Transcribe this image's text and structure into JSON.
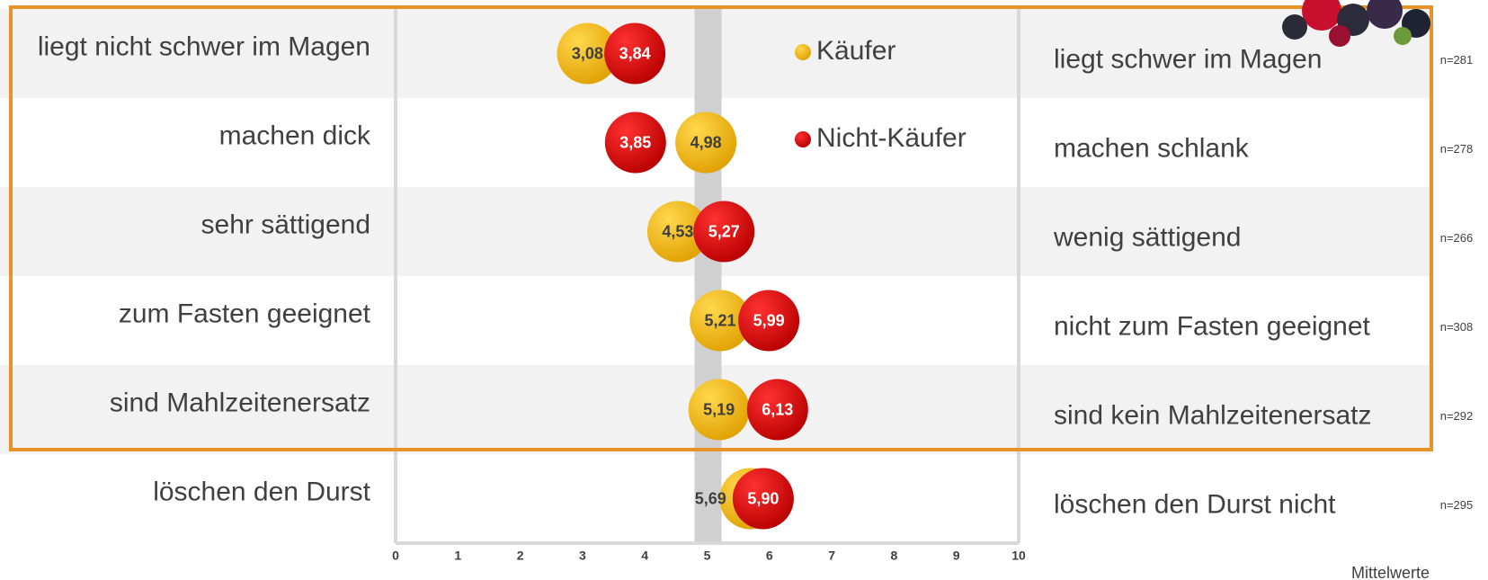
{
  "chart_data": {
    "type": "dot",
    "categories": [
      "liegt nicht schwer im Magen",
      "machen dick",
      "sehr sättigend",
      "zum Fasten geeignet",
      "sind Mahlzeitenersatz",
      "löschen den Durst"
    ],
    "right_labels": [
      "liegt schwer im Magen",
      "machen schlank",
      "wenig sättigend",
      "nicht zum Fasten geeignet",
      "sind kein Mahlzeitenersatz",
      "löschen den Durst nicht"
    ],
    "n_labels": [
      "n=281",
      "n=278",
      "n=266",
      "n=308",
      "n=292",
      "n=295"
    ],
    "series": [
      {
        "name": "Käufer",
        "color": "#f5b800",
        "label_color": "#404040",
        "values": [
          3.08,
          4.98,
          4.53,
          5.21,
          5.19,
          5.69
        ],
        "value_labels": [
          "3,08",
          "4,98",
          "4,53",
          "5,21",
          "5,19",
          "5,69"
        ]
      },
      {
        "name": "Nicht-Käufer",
        "color": "#e3000f",
        "label_color": "#ffffff",
        "values": [
          3.84,
          3.85,
          5.27,
          5.99,
          6.13,
          5.9
        ],
        "value_labels": [
          "3,84",
          "3,85",
          "5,27",
          "5,99",
          "6,13",
          "5,90"
        ]
      }
    ],
    "xlim": [
      0,
      10
    ],
    "xticks": [
      0,
      1,
      2,
      3,
      4,
      5,
      6,
      7,
      8,
      9,
      10
    ],
    "unit_label": "Mittelwerte"
  }
}
